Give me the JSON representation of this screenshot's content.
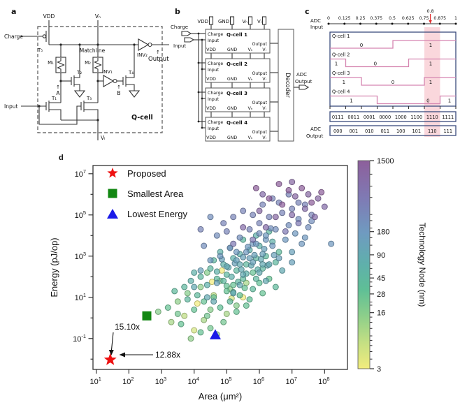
{
  "figure": {
    "panel_a_label": "a",
    "panel_b_label": "b",
    "panel_c_label": "c",
    "panel_d_label": "d"
  },
  "panel_a": {
    "labels": {
      "vdd": "VDD",
      "vh": "Vₕ",
      "vl": "Vₗ",
      "charge": "Charge",
      "input": "Input",
      "matchline": "Matchline",
      "t1": "T₁",
      "t2": "T₂",
      "t3": "T₃",
      "t4": "T₄",
      "t5": "T₅",
      "m1": "M₁",
      "m2": "M₂",
      "inv1": "INV₁",
      "inv2": "INV₂",
      "arrow_up": "↑",
      "node_a": "A",
      "node_b": "B",
      "output": "Output",
      "qcell": "Q-cell"
    },
    "colors": {
      "node_a": "#45b7e6",
      "node_b": "#e0606a",
      "output": "#cc6fc4"
    }
  },
  "panel_b": {
    "top_pins": [
      "VDD",
      "GND",
      "Vₕ",
      "Vₗ"
    ],
    "charge_label": "Charge",
    "input_label": "Input",
    "cell_titles": [
      "Q-cell 1",
      "Q-cell 2",
      "Q-cell 3",
      "Q-cell 4"
    ],
    "cell_ports": {
      "charge": "Charge",
      "input": "Input",
      "output": "Output",
      "bottom": [
        "VDD",
        "GND",
        "Vₕ",
        "Vₗ"
      ]
    },
    "decoder_label": "Decoder",
    "adc_label_line1": "ADC",
    "adc_label_line2": "Output"
  },
  "panel_c": {
    "axis_label_line1": "ADC",
    "axis_label_line2": "Input",
    "axis_ticks": [
      "0",
      "0.125",
      "0.25",
      "0.375",
      "0.5",
      "0.625",
      "0.75",
      "0.875",
      "1"
    ],
    "marker_value": "0.8",
    "marker_position": 0.8,
    "highlight_span": [
      0.75,
      0.875
    ],
    "waveforms": [
      {
        "name": "Q-cell 1",
        "trace": [
          [
            0,
            0
          ],
          [
            0.5,
            0
          ],
          [
            0.5,
            1
          ],
          [
            1,
            1
          ]
        ],
        "labels": [
          [
            "0",
            0.25
          ],
          [
            "1",
            0.8
          ]
        ]
      },
      {
        "name": "Q-cell 2",
        "trace": [
          [
            0,
            1
          ],
          [
            0.125,
            1
          ],
          [
            0.125,
            0
          ],
          [
            0.625,
            0
          ],
          [
            0.625,
            1
          ],
          [
            1,
            1
          ]
        ],
        "labels": [
          [
            "1",
            0.05
          ],
          [
            "0",
            0.36
          ],
          [
            "1",
            0.8
          ]
        ]
      },
      {
        "name": "Q-cell 3",
        "trace": [
          [
            0,
            1
          ],
          [
            0.25,
            1
          ],
          [
            0.25,
            0
          ],
          [
            0.75,
            0
          ],
          [
            0.75,
            1
          ],
          [
            1,
            1
          ]
        ],
        "labels": [
          [
            "1",
            0.11
          ],
          [
            "0",
            0.5
          ],
          [
            "1",
            0.8
          ]
        ]
      },
      {
        "name": "Q-cell 4",
        "trace": [
          [
            0,
            1
          ],
          [
            0.375,
            1
          ],
          [
            0.375,
            0
          ],
          [
            0.875,
            0
          ],
          [
            0.875,
            1
          ],
          [
            1,
            1
          ]
        ],
        "labels": [
          [
            "1",
            0.17
          ],
          [
            "0",
            0.78
          ],
          [
            "1",
            0.95
          ]
        ]
      }
    ],
    "raw_codes": [
      "0111",
      "0011",
      "0001",
      "0000",
      "1000",
      "1100",
      "1110",
      "1111"
    ],
    "raw_highlight_index": 6,
    "adc_output_label_line1": "ADC",
    "adc_output_label_line2": "Output",
    "adc_codes": [
      "000",
      "001",
      "010",
      "011",
      "100",
      "101",
      "110",
      "111"
    ],
    "adc_highlight_index": 6,
    "colors": {
      "trace": "#d585b0",
      "box": "#3a4a7c",
      "highlight": "#f5b6c0",
      "marker": "#e03030"
    }
  },
  "chart_data": {
    "type": "scatter",
    "xlabel": "Area (μm²)",
    "ylabel": "Energy (pJ/op)",
    "x_scale": "log",
    "y_scale": "log",
    "xlim_log": [
      0.9,
      8.7
    ],
    "ylim_log": [
      -2.5,
      7.4
    ],
    "x_ticks_exp": [
      1,
      2,
      3,
      4,
      5,
      6,
      7,
      8
    ],
    "y_ticks_exp": [
      -1,
      1,
      3,
      5,
      7
    ],
    "grid": false,
    "legend_position": "upper left",
    "legend": [
      {
        "label": "Proposed",
        "marker": "star",
        "color": "#ee1111"
      },
      {
        "label": "Smallest Area",
        "marker": "square",
        "color": "#128712"
      },
      {
        "label": "Lowest Energy",
        "marker": "triangle",
        "color": "#1a1ae8"
      }
    ],
    "highlights": [
      {
        "label": "Proposed",
        "marker": "star",
        "color": "#ee1111",
        "log_area": 1.43,
        "log_energy": -2.03
      },
      {
        "label": "Smallest Area",
        "marker": "square",
        "color": "#128712",
        "log_area": 2.55,
        "log_energy": 0.1
      },
      {
        "label": "Lowest Energy",
        "marker": "triangle",
        "color": "#1a1ae8",
        "log_area": 4.65,
        "log_energy": -0.8
      }
    ],
    "annotations": [
      {
        "text": "15.10x"
      },
      {
        "text": "12.88x"
      }
    ],
    "colorbar": {
      "label": "Technology Node (nm)",
      "scale": "log",
      "min": 3,
      "max": 1500,
      "ticks": [
        1500,
        180,
        90,
        45,
        28,
        16,
        3
      ],
      "gradient_top_to_bottom": [
        "#8d5f9b",
        "#7f7ab4",
        "#6f9bc0",
        "#5fb0ab",
        "#5fbf96",
        "#8ecf8a",
        "#c6e083",
        "#f2ec7d"
      ]
    },
    "points": [
      [
        2.9,
        0.3,
        16
      ],
      [
        3.3,
        -0.2,
        10
      ],
      [
        3.5,
        0.8,
        14
      ],
      [
        3.7,
        0.1,
        7
      ],
      [
        3.8,
        1.2,
        16
      ],
      [
        4.0,
        -0.6,
        5
      ],
      [
        4.1,
        0.7,
        3
      ],
      [
        4.2,
        1.5,
        14
      ],
      [
        4.3,
        -0.1,
        10
      ],
      [
        4.5,
        0.4,
        16
      ],
      [
        4.6,
        1.1,
        7
      ],
      [
        4.7,
        -0.8,
        14
      ],
      [
        4.8,
        1.8,
        16
      ],
      [
        5.0,
        0.2,
        10
      ],
      [
        5.1,
        1.4,
        14
      ],
      [
        5.3,
        0.6,
        16
      ],
      [
        5.5,
        1.0,
        3
      ],
      [
        4.4,
        2.2,
        16
      ],
      [
        3.9,
        -1.0,
        14
      ],
      [
        5.6,
        1.7,
        10
      ],
      [
        4.85,
        2.3,
        3
      ],
      [
        5.15,
        0.95,
        5
      ],
      [
        4.55,
        1.75,
        3
      ],
      [
        3.2,
        0.5,
        28
      ],
      [
        3.4,
        1.3,
        40
      ],
      [
        3.6,
        -0.3,
        28
      ],
      [
        3.8,
        0.9,
        45
      ],
      [
        3.9,
        1.8,
        65
      ],
      [
        4.0,
        0.4,
        28
      ],
      [
        4.1,
        1.1,
        40
      ],
      [
        4.2,
        2.0,
        45
      ],
      [
        4.3,
        0.8,
        28
      ],
      [
        4.4,
        1.6,
        65
      ],
      [
        4.5,
        -0.5,
        22
      ],
      [
        4.5,
        2.4,
        45
      ],
      [
        4.6,
        1.0,
        28
      ],
      [
        4.7,
        1.9,
        40
      ],
      [
        4.8,
        0.5,
        32
      ],
      [
        4.9,
        2.6,
        65
      ],
      [
        5.0,
        1.3,
        28
      ],
      [
        5.0,
        2.1,
        45
      ],
      [
        5.1,
        0.8,
        40
      ],
      [
        5.2,
        2.9,
        65
      ],
      [
        5.2,
        1.6,
        28
      ],
      [
        5.3,
        2.3,
        45
      ],
      [
        5.4,
        1.1,
        32
      ],
      [
        5.4,
        3.1,
        65
      ],
      [
        5.5,
        1.9,
        40
      ],
      [
        5.6,
        2.6,
        45
      ],
      [
        5.6,
        0.6,
        28
      ],
      [
        5.7,
        3.3,
        65
      ],
      [
        5.8,
        1.4,
        40
      ],
      [
        5.8,
        2.2,
        28
      ],
      [
        5.9,
        2.9,
        45
      ],
      [
        6.0,
        1.7,
        32
      ],
      [
        6.0,
        3.5,
        65
      ],
      [
        6.1,
        2.4,
        45
      ],
      [
        6.2,
        3.0,
        40
      ],
      [
        6.3,
        1.9,
        28
      ],
      [
        6.4,
        3.7,
        65
      ],
      [
        6.5,
        2.7,
        45
      ],
      [
        6.6,
        3.2,
        40
      ],
      [
        3.5,
        0.2,
        22
      ],
      [
        3.7,
        1.5,
        45
      ],
      [
        4.0,
        2.2,
        65
      ],
      [
        4.2,
        -0.7,
        28
      ],
      [
        4.6,
        2.8,
        45
      ],
      [
        4.9,
        -0.2,
        22
      ],
      [
        5.1,
        3.4,
        65
      ],
      [
        5.3,
        0.3,
        28
      ],
      [
        5.7,
        0.9,
        32
      ],
      [
        5.9,
        4.0,
        65
      ],
      [
        6.1,
        1.2,
        28
      ],
      [
        6.3,
        4.2,
        45
      ],
      [
        6.5,
        1.5,
        40
      ],
      [
        4.8,
        3.2,
        65
      ],
      [
        4.4,
        0.1,
        22
      ],
      [
        5.5,
        3.8,
        45
      ],
      [
        4.9,
        1.8,
        45
      ],
      [
        5.05,
        2.45,
        90
      ],
      [
        5.15,
        2.0,
        65
      ],
      [
        5.25,
        2.65,
        130
      ],
      [
        5.35,
        1.75,
        45
      ],
      [
        5.45,
        2.35,
        90
      ],
      [
        5.5,
        2.95,
        130
      ],
      [
        5.6,
        2.15,
        65
      ],
      [
        5.65,
        3.45,
        180
      ],
      [
        5.75,
        2.55,
        90
      ],
      [
        5.85,
        3.05,
        130
      ],
      [
        5.95,
        2.35,
        65
      ],
      [
        6.05,
        2.85,
        90
      ],
      [
        6.15,
        3.35,
        130
      ],
      [
        6.25,
        2.55,
        90
      ],
      [
        5.0,
        1.55,
        28
      ],
      [
        5.2,
        1.25,
        45
      ],
      [
        5.4,
        2.6,
        90
      ],
      [
        5.3,
        3.2,
        180
      ],
      [
        5.7,
        2.9,
        130
      ],
      [
        5.9,
        1.9,
        45
      ],
      [
        6.1,
        2.6,
        90
      ],
      [
        4.7,
        2.25,
        65
      ],
      [
        4.85,
        2.85,
        130
      ],
      [
        5.55,
        1.45,
        28
      ],
      [
        5.8,
        3.6,
        180
      ],
      [
        6.0,
        4.1,
        250
      ],
      [
        6.2,
        3.8,
        180
      ],
      [
        6.35,
        4.35,
        250
      ],
      [
        6.45,
        3.05,
        130
      ],
      [
        4.0,
        1.5,
        90
      ],
      [
        4.2,
        2.3,
        130
      ],
      [
        4.4,
        1.0,
        90
      ],
      [
        4.5,
        2.8,
        180
      ],
      [
        4.7,
        1.7,
        130
      ],
      [
        4.8,
        3.0,
        180
      ],
      [
        5.0,
        2.5,
        90
      ],
      [
        5.1,
        3.4,
        250
      ],
      [
        5.2,
        1.2,
        90
      ],
      [
        5.3,
        2.8,
        130
      ],
      [
        5.4,
        3.9,
        250
      ],
      [
        5.5,
        2.1,
        90
      ],
      [
        5.6,
        3.2,
        180
      ],
      [
        5.7,
        4.3,
        350
      ],
      [
        5.8,
        2.7,
        130
      ],
      [
        5.9,
        3.6,
        180
      ],
      [
        6.0,
        2.2,
        90
      ],
      [
        6.0,
        4.6,
        350
      ],
      [
        6.1,
        3.1,
        130
      ],
      [
        6.2,
        4.0,
        180
      ],
      [
        6.3,
        2.6,
        90
      ],
      [
        6.3,
        4.9,
        350
      ],
      [
        6.4,
        3.5,
        180
      ],
      [
        6.5,
        4.3,
        250
      ],
      [
        6.6,
        2.9,
        130
      ],
      [
        6.7,
        5.1,
        350
      ],
      [
        6.8,
        3.8,
        180
      ],
      [
        6.9,
        4.5,
        250
      ],
      [
        7.0,
        3.2,
        130
      ],
      [
        7.0,
        5.3,
        350
      ],
      [
        7.1,
        4.1,
        180
      ],
      [
        7.2,
        4.8,
        250
      ],
      [
        7.3,
        3.6,
        180
      ],
      [
        7.4,
        5.5,
        350
      ],
      [
        7.5,
        4.4,
        250
      ],
      [
        7.6,
        5.0,
        350
      ],
      [
        4.6,
        0.8,
        90
      ],
      [
        5.0,
        4.2,
        350
      ],
      [
        5.4,
        1.6,
        90
      ],
      [
        5.8,
        5.0,
        350
      ],
      [
        6.2,
        1.8,
        90
      ],
      [
        6.6,
        5.6,
        350
      ],
      [
        7.0,
        2.7,
        130
      ],
      [
        7.4,
        3.9,
        180
      ],
      [
        4.3,
        3.5,
        250
      ],
      [
        4.9,
        4.6,
        350
      ],
      [
        5.5,
        5.2,
        350
      ],
      [
        6.1,
        5.5,
        350
      ],
      [
        6.7,
        2.3,
        90
      ],
      [
        7.2,
        5.6,
        350
      ],
      [
        7.6,
        4.7,
        250
      ],
      [
        5.2,
        4.9,
        350
      ],
      [
        4.7,
        4.0,
        250
      ],
      [
        6.9,
        6.0,
        350
      ],
      [
        6.4,
        5.8,
        350
      ],
      [
        4.5,
        4.9,
        250
      ],
      [
        4.2,
        4.3,
        350
      ],
      [
        5.2,
        3.6,
        500
      ],
      [
        5.5,
        4.4,
        800
      ],
      [
        5.8,
        3.8,
        500
      ],
      [
        6.0,
        5.2,
        1000
      ],
      [
        6.2,
        4.4,
        800
      ],
      [
        6.3,
        5.8,
        1500
      ],
      [
        6.5,
        4.9,
        1000
      ],
      [
        6.7,
        5.5,
        1500
      ],
      [
        6.8,
        4.2,
        500
      ],
      [
        6.9,
        6.2,
        1500
      ],
      [
        7.0,
        5.0,
        800
      ],
      [
        7.1,
        5.9,
        1000
      ],
      [
        7.2,
        4.6,
        500
      ],
      [
        7.3,
        6.3,
        1500
      ],
      [
        7.4,
        5.3,
        800
      ],
      [
        7.5,
        6.0,
        1000
      ],
      [
        7.6,
        5.6,
        1500
      ],
      [
        7.7,
        4.9,
        800
      ],
      [
        7.8,
        5.8,
        1000
      ],
      [
        7.9,
        6.1,
        1500
      ],
      [
        8.0,
        5.4,
        800
      ],
      [
        8.2,
        3.6,
        180
      ],
      [
        6.6,
        6.5,
        1500
      ],
      [
        7.0,
        6.6,
        1000
      ],
      [
        6.1,
        6.0,
        800
      ],
      [
        5.9,
        6.3,
        1500
      ]
    ]
  }
}
